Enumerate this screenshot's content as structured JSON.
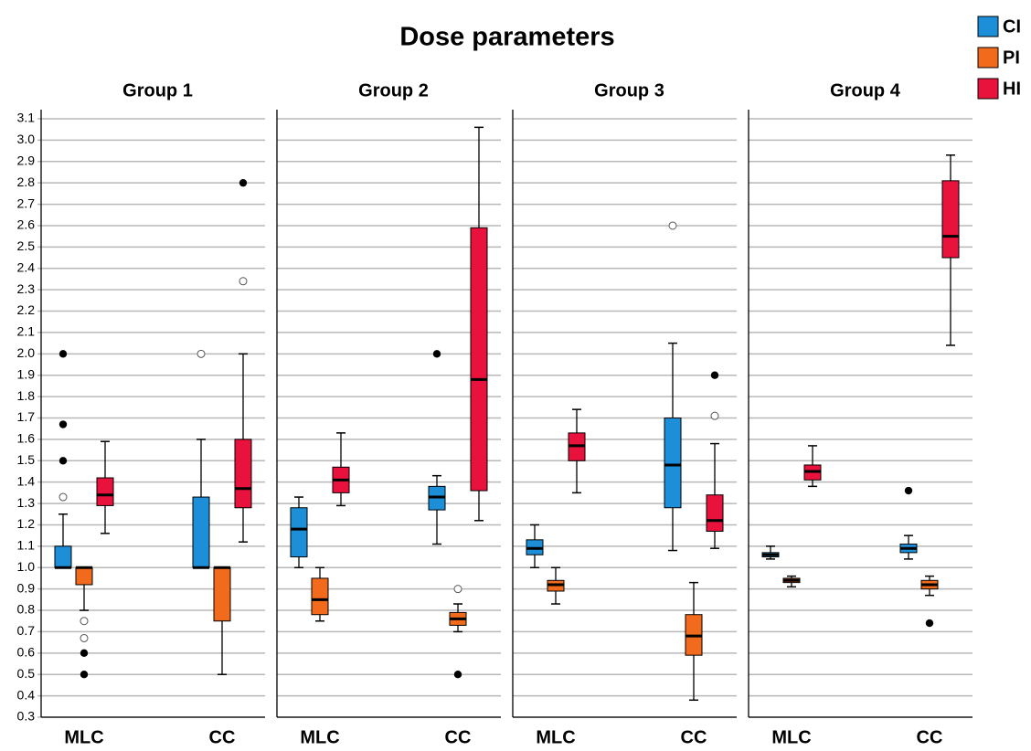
{
  "chart_data": {
    "type": "boxplot",
    "title": "Dose parameters",
    "series": [
      {
        "name": "CI",
        "color": "#1c8fd8"
      },
      {
        "name": "PI",
        "color": "#f26b1d"
      },
      {
        "name": "HI",
        "color": "#e8123c"
      }
    ],
    "legend": "top-right",
    "grid": true,
    "ylim": [
      0.3,
      3.1
    ],
    "yticks": [
      0.3,
      0.4,
      0.5,
      0.6,
      0.7,
      0.8,
      0.9,
      {
        "value": 1,
        "label": "1.0"
      },
      1.1,
      1.2,
      1.3,
      1.4,
      1.5,
      1.6,
      1.7,
      1.8,
      1.9,
      {
        "value": 2,
        "label": "2.0"
      },
      2.1,
      2.2,
      2.3,
      2.4,
      2.5,
      2.6,
      2.7,
      2.8,
      2.9,
      {
        "value": 3,
        "label": "3.0"
      },
      3.1
    ],
    "panels": [
      {
        "title": "Group 1",
        "categories": [
          "MLC",
          "CC"
        ],
        "boxes": [
          [
            {
              "min": 1.0,
              "q1": 1.0,
              "median": 1.0,
              "q3": 1.1,
              "max": 1.25,
              "outliers": [
                1.33
              ],
              "extremes": [
                2.0,
                1.67,
                1.5
              ]
            },
            {
              "min": 0.8,
              "q1": 0.92,
              "median": 1.0,
              "q3": 1.0,
              "max": 1.0,
              "outliers": [
                0.75,
                0.67
              ],
              "extremes": [
                0.6,
                0.5
              ]
            },
            {
              "min": 1.16,
              "q1": 1.29,
              "median": 1.34,
              "q3": 1.42,
              "max": 1.59,
              "outliers": [],
              "extremes": []
            }
          ],
          [
            {
              "min": 1.0,
              "q1": 1.0,
              "median": 1.0,
              "q3": 1.33,
              "max": 1.6,
              "outliers": [
                2.0
              ],
              "extremes": []
            },
            {
              "min": 0.5,
              "q1": 0.75,
              "median": 1.0,
              "q3": 1.0,
              "max": 1.0,
              "outliers": [],
              "extremes": []
            },
            {
              "min": 1.12,
              "q1": 1.28,
              "median": 1.37,
              "q3": 1.6,
              "max": 2.0,
              "outliers": [
                2.34
              ],
              "extremes": [
                2.8
              ]
            }
          ]
        ]
      },
      {
        "title": "Group 2",
        "categories": [
          "MLC",
          "CC"
        ],
        "boxes": [
          [
            {
              "min": 1.0,
              "q1": 1.05,
              "median": 1.18,
              "q3": 1.28,
              "max": 1.33,
              "outliers": [],
              "extremes": []
            },
            {
              "min": 0.75,
              "q1": 0.78,
              "median": 0.85,
              "q3": 0.95,
              "max": 1.0,
              "outliers": [],
              "extremes": []
            },
            {
              "min": 1.29,
              "q1": 1.35,
              "median": 1.41,
              "q3": 1.47,
              "max": 1.63,
              "outliers": [],
              "extremes": []
            }
          ],
          [
            {
              "min": 1.11,
              "q1": 1.27,
              "median": 1.33,
              "q3": 1.38,
              "max": 1.43,
              "outliers": [],
              "extremes": [
                2.0
              ]
            },
            {
              "min": 0.7,
              "q1": 0.73,
              "median": 0.76,
              "q3": 0.79,
              "max": 0.83,
              "outliers": [
                0.9
              ],
              "extremes": [
                0.5
              ]
            },
            {
              "min": 1.22,
              "q1": 1.36,
              "median": 1.88,
              "q3": 2.59,
              "max": 3.06,
              "outliers": [],
              "extremes": []
            }
          ]
        ]
      },
      {
        "title": "Group 3",
        "categories": [
          "MLC",
          "CC"
        ],
        "boxes": [
          [
            {
              "min": 1.0,
              "q1": 1.06,
              "median": 1.09,
              "q3": 1.13,
              "max": 1.2,
              "outliers": [],
              "extremes": []
            },
            {
              "min": 0.83,
              "q1": 0.89,
              "median": 0.92,
              "q3": 0.94,
              "max": 1.0,
              "outliers": [],
              "extremes": []
            },
            {
              "min": 1.35,
              "q1": 1.5,
              "median": 1.57,
              "q3": 1.63,
              "max": 1.74,
              "outliers": [],
              "extremes": []
            }
          ],
          [
            {
              "min": 1.08,
              "q1": 1.28,
              "median": 1.48,
              "q3": 1.7,
              "max": 2.05,
              "outliers": [
                2.6
              ],
              "extremes": []
            },
            {
              "min": 0.38,
              "q1": 0.59,
              "median": 0.68,
              "q3": 0.78,
              "max": 0.93,
              "outliers": [],
              "extremes": []
            },
            {
              "min": 1.09,
              "q1": 1.17,
              "median": 1.22,
              "q3": 1.34,
              "max": 1.58,
              "outliers": [
                1.71
              ],
              "extremes": [
                1.9
              ]
            }
          ]
        ]
      },
      {
        "title": "Group 4",
        "categories": [
          "MLC",
          "CC"
        ],
        "boxes": [
          [
            {
              "min": 1.04,
              "q1": 1.05,
              "median": 1.06,
              "q3": 1.07,
              "max": 1.1,
              "outliers": [],
              "extremes": []
            },
            {
              "min": 0.91,
              "q1": 0.93,
              "median": 0.94,
              "q3": 0.95,
              "max": 0.96,
              "outliers": [],
              "extremes": []
            },
            {
              "min": 1.38,
              "q1": 1.41,
              "median": 1.45,
              "q3": 1.48,
              "max": 1.57,
              "outliers": [],
              "extremes": []
            }
          ],
          [
            {
              "min": 1.04,
              "q1": 1.07,
              "median": 1.09,
              "q3": 1.11,
              "max": 1.15,
              "outliers": [],
              "extremes": [
                1.36
              ]
            },
            {
              "min": 0.87,
              "q1": 0.9,
              "median": 0.92,
              "q3": 0.94,
              "max": 0.96,
              "outliers": [],
              "extremes": [
                0.74
              ]
            },
            {
              "min": 2.04,
              "q1": 2.45,
              "median": 2.55,
              "q3": 2.81,
              "max": 2.93,
              "outliers": [],
              "extremes": []
            }
          ]
        ]
      }
    ]
  }
}
